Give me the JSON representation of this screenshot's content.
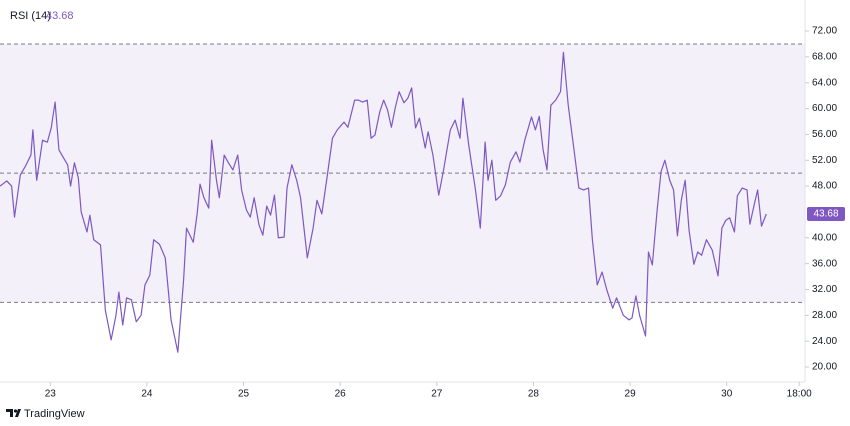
{
  "chart_data": {
    "type": "line",
    "series": [
      {
        "name": "RSI (14)",
        "color": "#7e57c2",
        "x": [
          22.48,
          22.55,
          22.6,
          22.63,
          22.69,
          22.74,
          22.8,
          22.82,
          22.86,
          22.92,
          22.97,
          23.01,
          23.05,
          23.09,
          23.14,
          23.18,
          23.21,
          23.25,
          23.29,
          23.32,
          23.38,
          23.41,
          23.45,
          23.52,
          23.57,
          23.63,
          23.68,
          23.71,
          23.75,
          23.79,
          23.84,
          23.89,
          23.94,
          23.98,
          24.03,
          24.07,
          24.13,
          24.19,
          24.25,
          24.32,
          24.38,
          24.41,
          24.48,
          24.52,
          24.55,
          24.59,
          24.64,
          24.67,
          24.72,
          24.75,
          24.8,
          24.84,
          24.89,
          24.94,
          24.98,
          25.03,
          25.07,
          25.11,
          25.16,
          25.2,
          25.24,
          25.28,
          25.32,
          25.36,
          25.42,
          25.45,
          25.5,
          25.55,
          25.59,
          25.66,
          25.72,
          25.76,
          25.81,
          25.86,
          25.92,
          25.97,
          26.04,
          26.08,
          26.15,
          26.19,
          26.23,
          26.28,
          26.32,
          26.36,
          26.41,
          26.45,
          26.49,
          26.53,
          26.57,
          26.61,
          26.66,
          26.7,
          26.74,
          26.78,
          26.82,
          26.88,
          26.91,
          26.96,
          27.02,
          27.07,
          27.14,
          27.19,
          27.24,
          27.27,
          27.33,
          27.4,
          27.45,
          27.5,
          27.53,
          27.57,
          27.61,
          27.66,
          27.71,
          27.76,
          27.82,
          27.86,
          27.91,
          27.98,
          28.02,
          28.06,
          28.1,
          28.14,
          28.18,
          28.23,
          28.28,
          28.31,
          28.36,
          28.42,
          28.47,
          28.52,
          28.57,
          28.61,
          28.66,
          28.71,
          28.76,
          28.82,
          28.86,
          28.93,
          28.99,
          29.02,
          29.06,
          29.1,
          29.16,
          29.19,
          29.23,
          29.28,
          29.32,
          29.36,
          29.41,
          29.45,
          29.49,
          29.53,
          29.57,
          29.61,
          29.66,
          29.7,
          29.74,
          29.79,
          29.85,
          29.91,
          29.95,
          29.99,
          30.03,
          30.08,
          30.11,
          30.16,
          30.21,
          30.24,
          30.29,
          30.32,
          30.36,
          30.41
        ],
        "values": [
          48.0,
          48.8,
          48.0,
          43.2,
          49.7,
          51.0,
          52.8,
          56.7,
          48.9,
          55.1,
          54.8,
          57.0,
          61.0,
          53.6,
          52.3,
          51.3,
          48.0,
          51.6,
          49.3,
          44.0,
          40.9,
          43.5,
          39.7,
          38.9,
          28.8,
          24.2,
          28.0,
          31.6,
          26.5,
          30.7,
          30.4,
          27.0,
          28.0,
          32.7,
          34.2,
          39.7,
          39.0,
          36.9,
          27.3,
          22.3,
          33.5,
          41.5,
          39.3,
          43.7,
          48.3,
          46.2,
          44.6,
          55.1,
          48.9,
          46.2,
          52.8,
          51.7,
          50.5,
          52.8,
          47.4,
          44.3,
          43.2,
          46.2,
          42.0,
          40.4,
          44.9,
          43.5,
          46.6,
          40.0,
          40.1,
          47.7,
          51.3,
          48.9,
          46.2,
          36.9,
          41.5,
          45.8,
          43.7,
          48.9,
          55.4,
          56.7,
          57.9,
          57.1,
          61.3,
          61.3,
          61.0,
          61.3,
          55.4,
          55.9,
          59.5,
          61.3,
          59.8,
          57.1,
          60.1,
          62.6,
          60.9,
          61.6,
          63.2,
          57.0,
          58.5,
          53.9,
          56.4,
          52.8,
          46.6,
          50.5,
          56.7,
          58.2,
          55.4,
          61.6,
          54.4,
          47.4,
          41.5,
          54.8,
          48.9,
          52.0,
          45.8,
          46.5,
          48.2,
          51.7,
          53.3,
          51.7,
          55.1,
          58.7,
          56.7,
          58.8,
          53.6,
          50.5,
          60.5,
          61.3,
          62.6,
          68.7,
          60.5,
          53.6,
          47.7,
          47.4,
          47.7,
          39.7,
          32.7,
          34.7,
          31.9,
          29.1,
          30.7,
          28.0,
          27.3,
          27.6,
          31.0,
          27.9,
          24.8,
          37.8,
          35.8,
          44.3,
          50.2,
          52.0,
          48.9,
          47.4,
          40.3,
          45.8,
          48.9,
          41.2,
          35.9,
          37.8,
          37.3,
          39.7,
          38.1,
          34.1,
          41.5,
          42.7,
          43.1,
          40.9,
          46.5,
          47.7,
          47.4,
          42.1,
          45.5,
          47.4,
          41.8,
          43.68
        ]
      }
    ],
    "xlim": [
      22.48,
      30.81
    ],
    "xticks": [
      23,
      24,
      25,
      26,
      27,
      28,
      29,
      30,
      {
        "value": 30.75,
        "label": "18:00"
      }
    ],
    "ylim": [
      17.68,
      76.8
    ],
    "yticks": [
      {
        "value": 72,
        "label": "72.00"
      },
      {
        "value": 68,
        "label": "68.00"
      },
      {
        "value": 64,
        "label": "64.00"
      },
      {
        "value": 60,
        "label": "60.00"
      },
      {
        "value": 56,
        "label": "56.00"
      },
      {
        "value": 52,
        "label": "52.00"
      },
      {
        "value": 48,
        "label": "48.00"
      },
      {
        "value": 40,
        "label": "40.00"
      },
      {
        "value": 36,
        "label": "36.00"
      },
      {
        "value": 32,
        "label": "32.00"
      },
      {
        "value": 28,
        "label": "28.00"
      },
      {
        "value": 24,
        "label": "24.00"
      },
      {
        "value": 20,
        "label": "20.00"
      }
    ],
    "band": [
      30,
      70
    ],
    "hlines": [
      70,
      50,
      30
    ],
    "band_color": "#7e57c2",
    "footer": "TradingView"
  }
}
